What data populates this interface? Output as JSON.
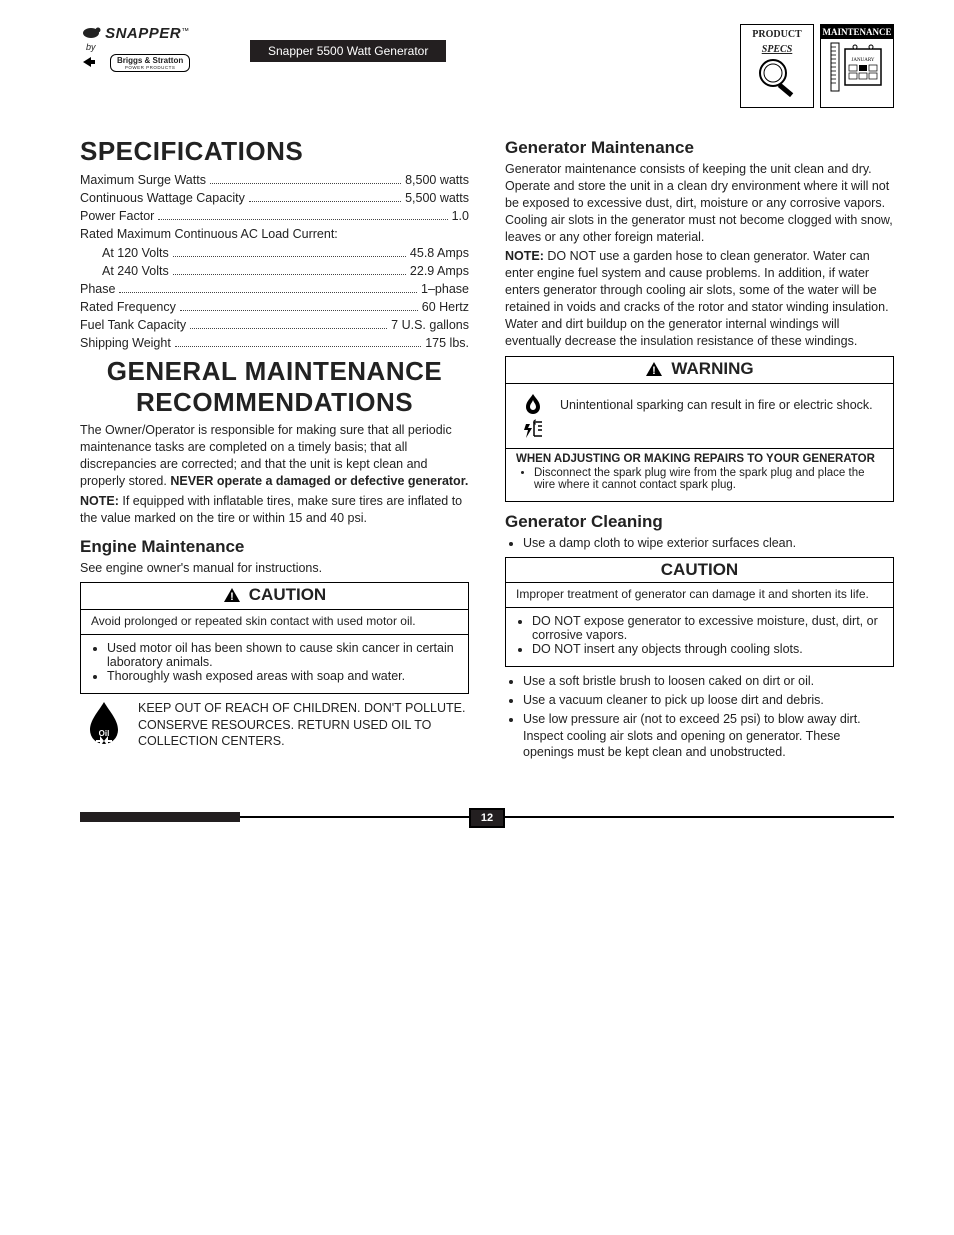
{
  "header": {
    "logo_main": "SNAPPER",
    "logo_tm": "™",
    "logo_sub_by": "by",
    "logo_briggs": "Briggs & Stratton",
    "logo_briggs_sub": "POWER PRODUCTS",
    "subtitle": "Snapper 5500 Watt Generator",
    "badge1_line1": "PRODUCT",
    "badge1_line2": "SPECS",
    "badge2_line1": "MAINTENANCE",
    "badge2_cal": "JANUARY"
  },
  "left": {
    "spec_heading": "SPECIFICATIONS",
    "specs": [
      {
        "label": "Maximum Surge Watts",
        "value": "8,500 watts",
        "indent": false
      },
      {
        "label": "Continuous Wattage Capacity",
        "value": "5,500 watts",
        "indent": false
      },
      {
        "label": "Power Factor",
        "value": "1.0",
        "indent": false
      },
      {
        "label": "Rated Maximum Continuous AC Load Current:",
        "value": "",
        "indent": false
      },
      {
        "label": "At 120 Volts",
        "value": "45.8 Amps",
        "indent": true
      },
      {
        "label": "At 240 Volts",
        "value": "22.9 Amps",
        "indent": true
      },
      {
        "label": "Phase",
        "value": "1–phase",
        "indent": false
      },
      {
        "label": "Rated Frequency",
        "value": "60 Hertz",
        "indent": false
      },
      {
        "label": "Fuel Tank Capacity",
        "value": "7 U.S. gallons",
        "indent": false
      },
      {
        "label": "Shipping Weight",
        "value": "175 lbs.",
        "indent": false
      }
    ],
    "gmr_heading": "GENERAL MAINTENANCE RECOMMENDATIONS",
    "gmr_p1_a": "The Owner/Operator is responsible for making sure that all periodic maintenance tasks are completed on a timely basis; that all discrepancies are corrected; and that the unit is kept clean and properly stored. ",
    "gmr_p1_b": "NEVER operate a damaged or defective generator.",
    "gmr_note_label": "NOTE:",
    "gmr_note": " If equipped with inflatable tires, make sure tires are inflated to the value marked on the tire or within 15 and 40 psi.",
    "engine_h": "Engine Maintenance",
    "engine_p": "See engine owner's manual for instructions.",
    "caution1_title": "CAUTION",
    "caution1_body": "Avoid prolonged or repeated skin contact with used motor oil.",
    "caution1_bullets": [
      "Used motor oil has been shown to cause skin cancer in certain laboratory animals.",
      "Thoroughly wash exposed areas with soap and water."
    ],
    "oil_text": "KEEP OUT OF REACH OF CHILDREN. DON'T POLLUTE. CONSERVE RESOURCES. RETURN USED OIL TO COLLECTION CENTERS."
  },
  "right": {
    "gm_h": "Generator Maintenance",
    "gm_p1": "Generator maintenance consists of keeping the unit clean and dry. Operate and store the unit in a clean dry environment where it will not be exposed to excessive dust, dirt, moisture or any corrosive vapors. Cooling air slots in the generator must not become clogged with snow, leaves or any other foreign material.",
    "gm_note_label": "NOTE:",
    "gm_note": " DO NOT use a garden hose to clean generator. Water can enter engine fuel system and cause problems. In addition, if water enters generator through cooling air slots, some of the water will be retained in voids and cracks of the rotor and stator winding insulation. Water and dirt buildup on the generator internal windings will eventually decrease the insulation resistance of these windings.",
    "warn_title": "WARNING",
    "warn_body": "Unintentional sparking can result in fire or electric shock.",
    "warn_sub_h": "WHEN ADJUSTING OR MAKING REPAIRS TO YOUR GENERATOR",
    "warn_bullets": [
      "Disconnect the spark plug wire from the spark plug and place the wire where it cannot contact spark plug."
    ],
    "gc_h": "Generator Cleaning",
    "gc_b1": "Use a damp cloth to wipe exterior surfaces clean.",
    "caution2_title": "CAUTION",
    "caution2_body": "Improper treatment of generator can damage it and shorten its life.",
    "caution2_bullets": [
      "DO NOT expose generator to excessive moisture, dust, dirt, or corrosive vapors.",
      "DO NOT insert any objects through cooling slots."
    ],
    "gc_bullets": [
      "Use a soft bristle brush to loosen caked on dirt or oil.",
      "Use a vacuum cleaner to pick up loose dirt and debris.",
      "Use low pressure air (not to exceed 25 psi) to blow away dirt. Inspect cooling air slots and opening on generator. These openings must be kept clean and unobstructed."
    ]
  },
  "footer": {
    "page": "12"
  }
}
